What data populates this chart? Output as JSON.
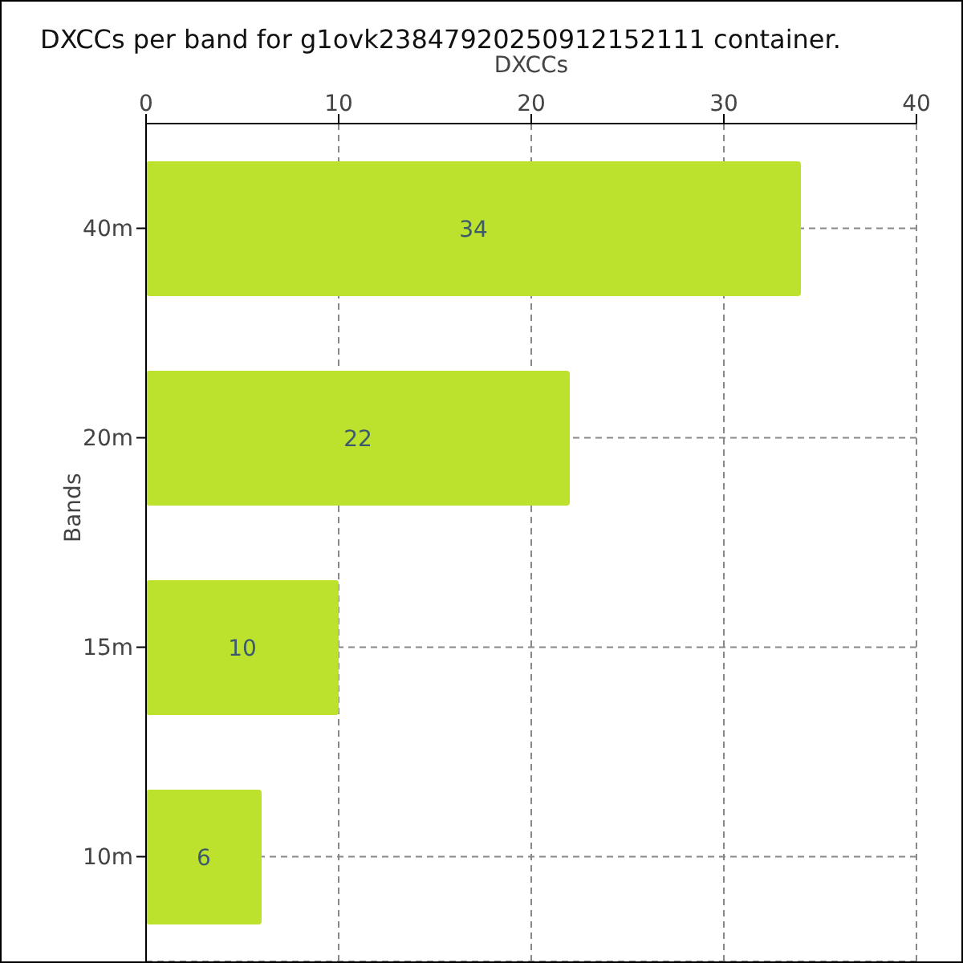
{
  "chart_data": {
    "type": "bar",
    "orientation": "horizontal",
    "title": "DXCCs per band for g1ovk23847920250912152111 container.",
    "xlabel": "DXCCs",
    "ylabel": "Bands",
    "categories": [
      "40m",
      "20m",
      "15m",
      "10m"
    ],
    "values": [
      34,
      22,
      10,
      6
    ],
    "color": "#bde22e",
    "xlim": [
      0,
      40
    ],
    "xticks": [
      0,
      10,
      20,
      30,
      40
    ],
    "grid": true,
    "data_labels": true
  }
}
